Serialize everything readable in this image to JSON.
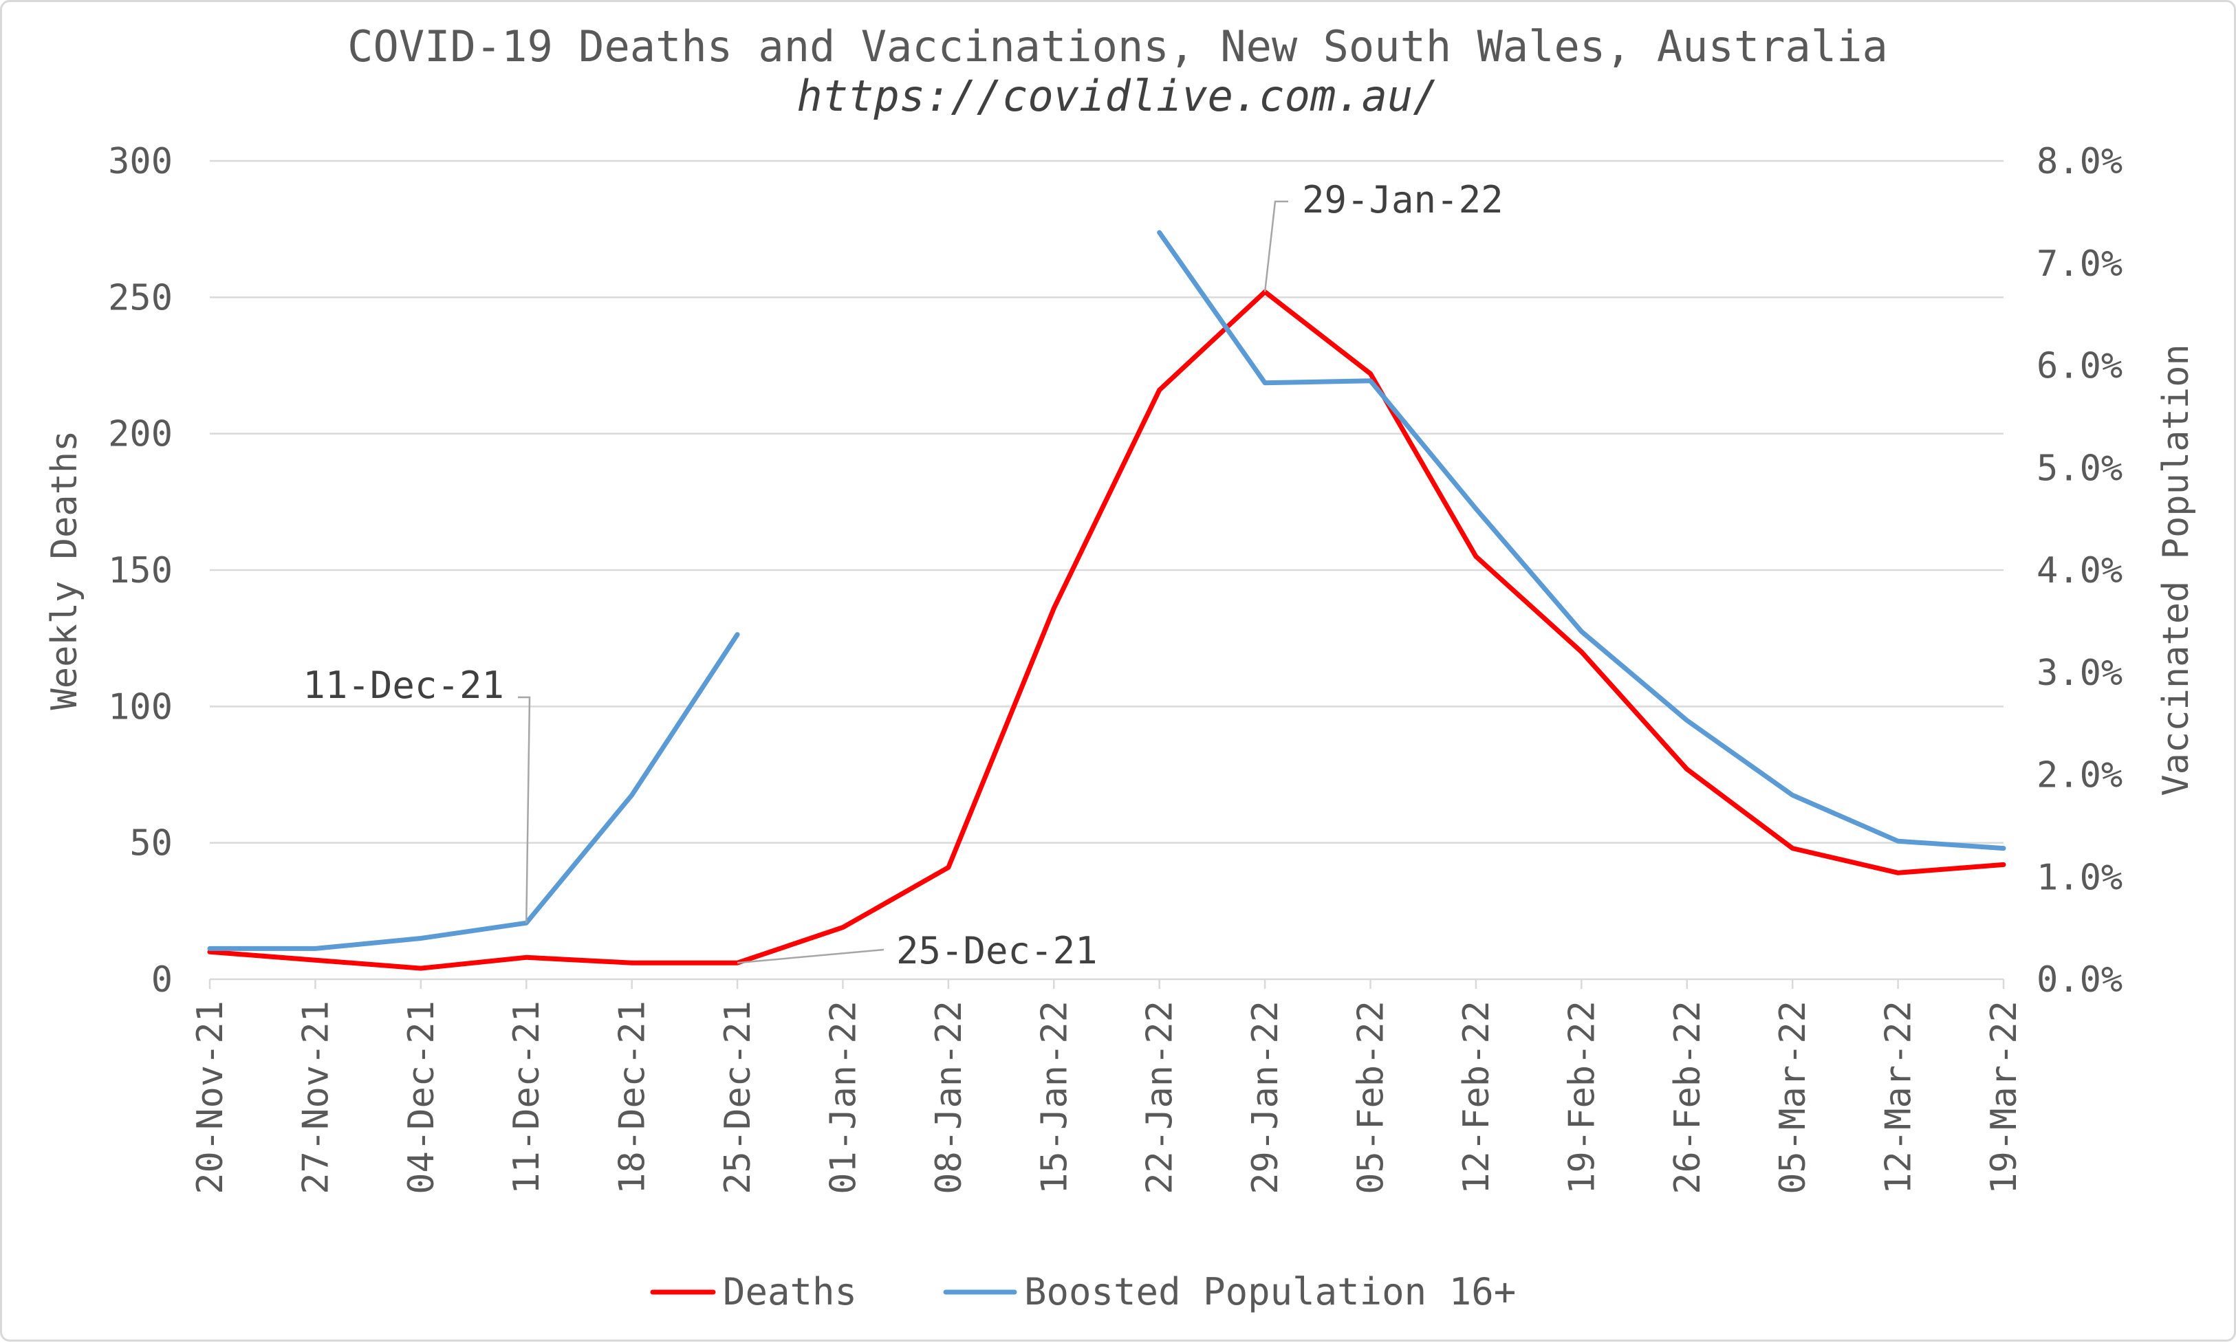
{
  "chart_data": {
    "type": "line",
    "title": "COVID-19 Deaths and Vaccinations, New South Wales, Australia",
    "subtitle": "https://covidlive.com.au/",
    "categories": [
      "20-Nov-21",
      "27-Nov-21",
      "04-Dec-21",
      "11-Dec-21",
      "18-Dec-21",
      "25-Dec-21",
      "01-Jan-22",
      "08-Jan-22",
      "15-Jan-22",
      "22-Jan-22",
      "29-Jan-22",
      "05-Feb-22",
      "12-Feb-22",
      "19-Feb-22",
      "26-Feb-22",
      "05-Mar-22",
      "12-Mar-22",
      "19-Mar-22"
    ],
    "ylabel": "Weekly Deaths",
    "y2label": "Vaccinated Population",
    "ylim": [
      0,
      300
    ],
    "yticks": [
      "0",
      "50",
      "100",
      "150",
      "200",
      "250",
      "300"
    ],
    "y2lim": [
      0,
      0.08
    ],
    "y2ticks": [
      "0.0%",
      "1.0%",
      "2.0%",
      "3.0%",
      "4.0%",
      "5.0%",
      "6.0%",
      "7.0%",
      "8.0%"
    ],
    "grid": true,
    "series": [
      {
        "name": "Deaths",
        "axis": "left",
        "color": "#ff0000",
        "values": [
          10,
          7,
          4,
          8,
          6,
          6,
          19,
          41,
          136,
          216,
          252,
          222,
          155,
          120,
          77,
          48,
          39,
          42
        ]
      },
      {
        "name": "Boosted Population 16+",
        "axis": "right",
        "color": "#5b9bd5",
        "values": [
          0.003,
          0.003,
          0.004,
          0.0055,
          0.018,
          0.0337,
          null,
          null,
          null,
          0.073,
          0.0583,
          0.0585,
          0.046,
          0.034,
          0.0253,
          0.018,
          0.0135,
          0.0128
        ]
      }
    ],
    "annotations": [
      {
        "label": "11-Dec-21",
        "category": "11-Dec-21",
        "series": "Boosted Population 16+"
      },
      {
        "label": "25-Dec-21",
        "category": "25-Dec-21",
        "series": "Deaths"
      },
      {
        "label": "29-Jan-22",
        "category": "29-Jan-22",
        "series": "Deaths"
      }
    ],
    "legend": "bottom"
  }
}
